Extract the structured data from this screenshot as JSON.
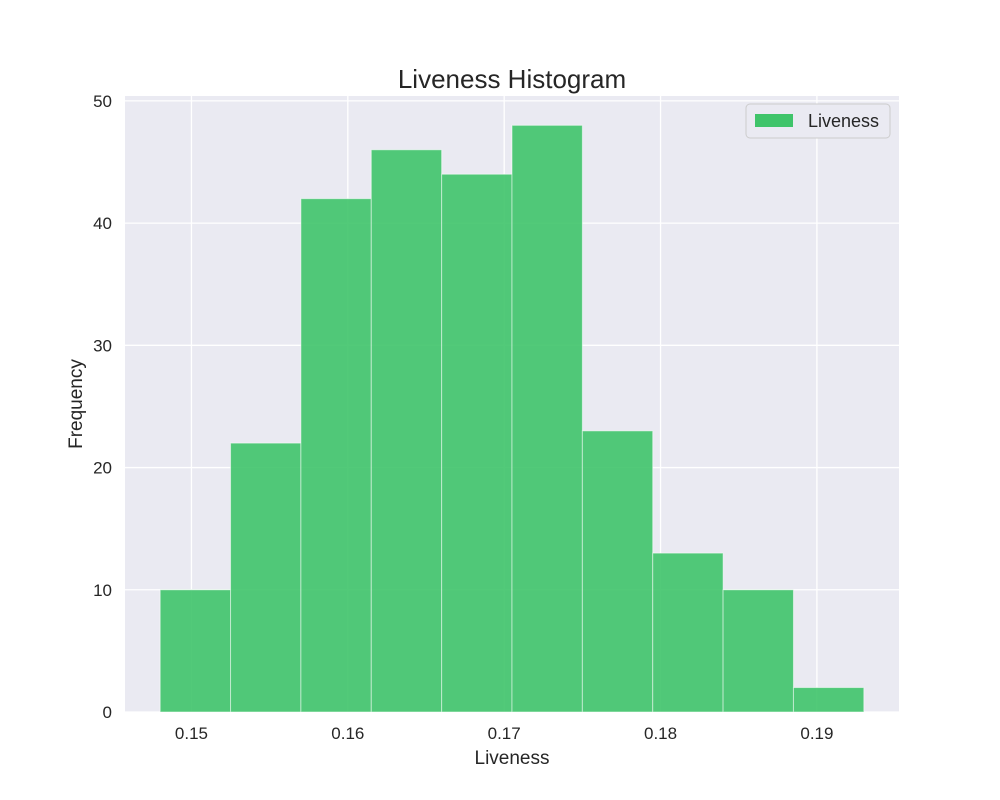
{
  "chart_data": {
    "type": "bar",
    "title": "Liveness Histogram",
    "xlabel": "Liveness",
    "ylabel": "Frequency",
    "bin_edges": [
      0.148,
      0.1525,
      0.157,
      0.1615,
      0.166,
      0.1705,
      0.175,
      0.1795,
      0.184,
      0.1885,
      0.193
    ],
    "series": [
      {
        "name": "Liveness",
        "values": [
          10,
          22,
          42,
          46,
          44,
          48,
          23,
          13,
          10,
          2
        ]
      }
    ],
    "xlim": [
      0.14575,
      0.19525
    ],
    "ylim": [
      0,
      50.4
    ],
    "xticks": [
      0.15,
      0.16,
      0.17,
      0.18,
      0.19
    ],
    "xtick_labels": [
      "0.15",
      "0.16",
      "0.17",
      "0.18",
      "0.19"
    ],
    "yticks": [
      0,
      10,
      20,
      30,
      40,
      50
    ],
    "ytick_labels": [
      "0",
      "10",
      "20",
      "30",
      "40",
      "50"
    ],
    "grid": true,
    "legend_position": "top-right",
    "colors": {
      "bar": "#3fc46a",
      "plot_background": "#eaeaf2",
      "grid": "#ffffff"
    }
  }
}
